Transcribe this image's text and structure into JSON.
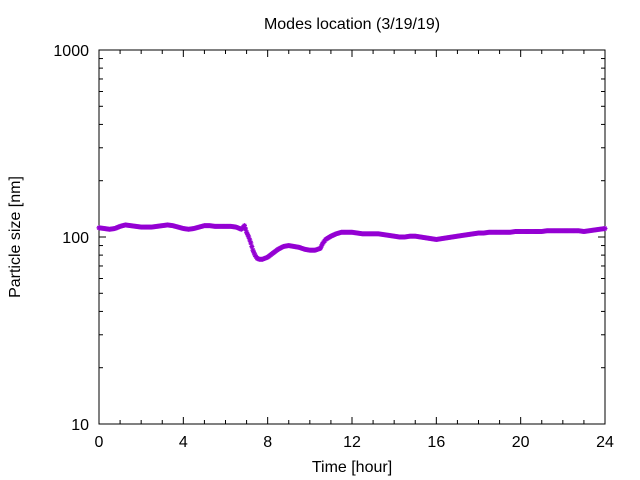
{
  "chart_data": {
    "type": "scatter",
    "title": "Modes location (3/19/19)",
    "xlabel": "Time [hour]",
    "ylabel": "Particle size [nm]",
    "xlim": [
      0,
      24
    ],
    "ylim": [
      10,
      1000
    ],
    "yscale": "log",
    "grid": false,
    "x_ticks": [
      0,
      4,
      8,
      12,
      16,
      20,
      24
    ],
    "x_tick_labels": [
      "0",
      "4",
      "8",
      "12",
      "16",
      "20",
      "24"
    ],
    "y_ticks": [
      10,
      100,
      1000
    ],
    "y_tick_labels": [
      "10",
      "100",
      "1000"
    ],
    "marker_color": "#9400d3",
    "marker": "star",
    "series": [
      {
        "points": [
          [
            0.0,
            112
          ],
          [
            0.25,
            111
          ],
          [
            0.5,
            110
          ],
          [
            0.75,
            111
          ],
          [
            1.0,
            114
          ],
          [
            1.25,
            116
          ],
          [
            1.5,
            115
          ],
          [
            1.75,
            114
          ],
          [
            2.0,
            113
          ],
          [
            2.25,
            113
          ],
          [
            2.5,
            113
          ],
          [
            2.75,
            114
          ],
          [
            3.0,
            115
          ],
          [
            3.25,
            116
          ],
          [
            3.5,
            115
          ],
          [
            3.75,
            113
          ],
          [
            4.0,
            111
          ],
          [
            4.25,
            110
          ],
          [
            4.5,
            111
          ],
          [
            4.75,
            113
          ],
          [
            5.0,
            115
          ],
          [
            5.25,
            115
          ],
          [
            5.5,
            114
          ],
          [
            5.75,
            114
          ],
          [
            6.0,
            114
          ],
          [
            6.25,
            114
          ],
          [
            6.5,
            113
          ],
          [
            6.75,
            110
          ],
          [
            6.9,
            115
          ],
          [
            7.0,
            106
          ],
          [
            7.1,
            100
          ],
          [
            7.2,
            93
          ],
          [
            7.3,
            85
          ],
          [
            7.4,
            80
          ],
          [
            7.5,
            77
          ],
          [
            7.6,
            76
          ],
          [
            7.75,
            76
          ],
          [
            8.0,
            78
          ],
          [
            8.25,
            82
          ],
          [
            8.5,
            86
          ],
          [
            8.75,
            89
          ],
          [
            9.0,
            90
          ],
          [
            9.25,
            89
          ],
          [
            9.5,
            88
          ],
          [
            9.75,
            86
          ],
          [
            10.0,
            85
          ],
          [
            10.25,
            85
          ],
          [
            10.5,
            87
          ],
          [
            10.6,
            92
          ],
          [
            10.75,
            97
          ],
          [
            11.0,
            101
          ],
          [
            11.25,
            104
          ],
          [
            11.5,
            106
          ],
          [
            11.75,
            106
          ],
          [
            12.0,
            106
          ],
          [
            12.25,
            105
          ],
          [
            12.5,
            104
          ],
          [
            12.75,
            104
          ],
          [
            13.0,
            104
          ],
          [
            13.25,
            104
          ],
          [
            13.5,
            103
          ],
          [
            13.75,
            102
          ],
          [
            14.0,
            101
          ],
          [
            14.25,
            100
          ],
          [
            14.5,
            100
          ],
          [
            14.75,
            101
          ],
          [
            15.0,
            101
          ],
          [
            15.25,
            100
          ],
          [
            15.5,
            99
          ],
          [
            15.75,
            98
          ],
          [
            16.0,
            97
          ],
          [
            16.25,
            98
          ],
          [
            16.5,
            99
          ],
          [
            16.75,
            100
          ],
          [
            17.0,
            101
          ],
          [
            17.25,
            102
          ],
          [
            17.5,
            103
          ],
          [
            17.75,
            104
          ],
          [
            18.0,
            105
          ],
          [
            18.25,
            105
          ],
          [
            18.5,
            106
          ],
          [
            18.75,
            106
          ],
          [
            19.0,
            106
          ],
          [
            19.25,
            106
          ],
          [
            19.5,
            106
          ],
          [
            19.75,
            107
          ],
          [
            20.0,
            107
          ],
          [
            20.25,
            107
          ],
          [
            20.5,
            107
          ],
          [
            20.75,
            107
          ],
          [
            21.0,
            107
          ],
          [
            21.25,
            108
          ],
          [
            21.5,
            108
          ],
          [
            21.75,
            108
          ],
          [
            22.0,
            108
          ],
          [
            22.25,
            108
          ],
          [
            22.5,
            108
          ],
          [
            22.75,
            108
          ],
          [
            23.0,
            107
          ],
          [
            23.25,
            108
          ],
          [
            23.5,
            109
          ],
          [
            23.75,
            110
          ],
          [
            24.0,
            111
          ]
        ]
      }
    ]
  }
}
